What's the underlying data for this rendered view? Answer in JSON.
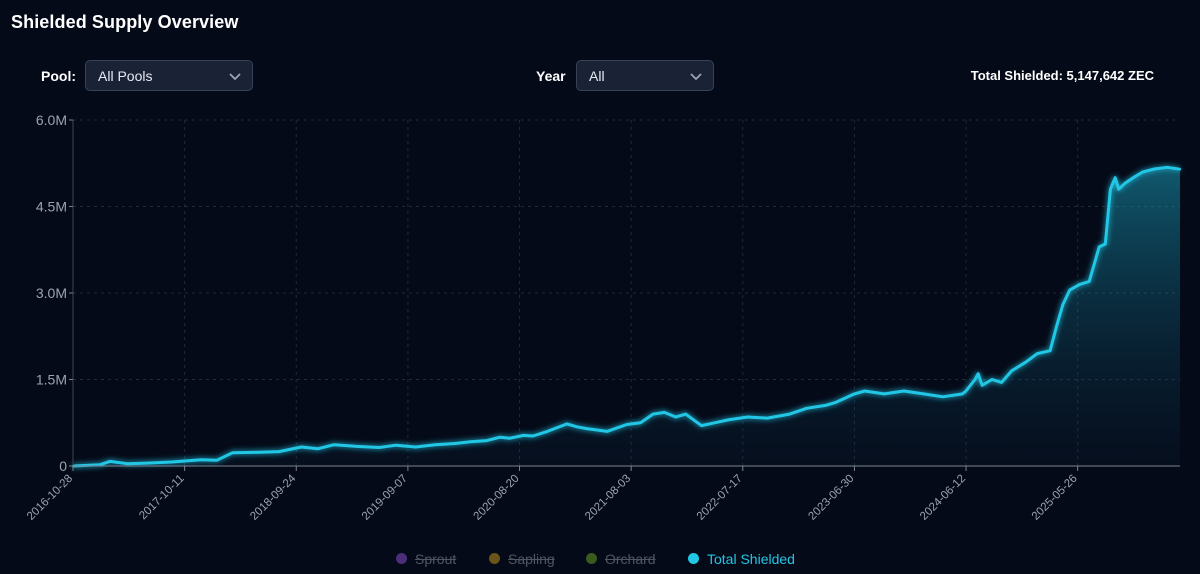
{
  "header": {
    "title": "Shielded Supply Overview"
  },
  "controls": {
    "pool_label": "Pool:",
    "pool_value": "All Pools",
    "year_label": "Year",
    "year_value": "All",
    "total_text": "Total Shielded: 5,147,642 ZEC"
  },
  "chart_data": {
    "type": "area",
    "ylim": [
      0,
      6000000
    ],
    "y_ticks": [
      {
        "value": 0,
        "label": "0"
      },
      {
        "value": 1500000,
        "label": "1.5M"
      },
      {
        "value": 3000000,
        "label": "3.0M"
      },
      {
        "value": 4500000,
        "label": "4.5M"
      },
      {
        "value": 6000000,
        "label": "6.0M"
      }
    ],
    "x_ticks": [
      "2016-10-28",
      "2017-10-11",
      "2018-09-24",
      "2019-09-07",
      "2020-08-20",
      "2021-08-03",
      "2022-07-17",
      "2023-06-30",
      "2024-06-12",
      "2025-05-26"
    ],
    "grid": true,
    "legend_position": "bottom-center",
    "series": [
      {
        "name": "Sprout",
        "color": "#4b2d7a",
        "visible": false
      },
      {
        "name": "Sapling",
        "color": "#6b5419",
        "visible": false
      },
      {
        "name": "Orchard",
        "color": "#3b5a1e",
        "visible": false
      },
      {
        "name": "Total Shielded",
        "color": "#22c7e6",
        "visible": true,
        "points": [
          [
            "2016-10-28",
            0
          ],
          [
            "2017-01-20",
            20000
          ],
          [
            "2017-02-20",
            80000
          ],
          [
            "2017-04-15",
            40000
          ],
          [
            "2017-06-15",
            50000
          ],
          [
            "2017-09-01",
            70000
          ],
          [
            "2017-12-01",
            110000
          ],
          [
            "2018-01-20",
            100000
          ],
          [
            "2018-03-10",
            230000
          ],
          [
            "2018-06-01",
            240000
          ],
          [
            "2018-08-01",
            250000
          ],
          [
            "2018-10-10",
            330000
          ],
          [
            "2018-12-01",
            300000
          ],
          [
            "2019-01-20",
            370000
          ],
          [
            "2019-04-01",
            340000
          ],
          [
            "2019-06-10",
            320000
          ],
          [
            "2019-08-01",
            360000
          ],
          [
            "2019-10-01",
            330000
          ],
          [
            "2019-12-01",
            370000
          ],
          [
            "2020-02-01",
            390000
          ],
          [
            "2020-03-20",
            420000
          ],
          [
            "2020-05-10",
            440000
          ],
          [
            "2020-06-20",
            500000
          ],
          [
            "2020-07-20",
            480000
          ],
          [
            "2020-09-01",
            530000
          ],
          [
            "2020-10-01",
            520000
          ],
          [
            "2020-11-15",
            600000
          ],
          [
            "2021-01-15",
            730000
          ],
          [
            "2021-02-15",
            680000
          ],
          [
            "2021-03-15",
            650000
          ],
          [
            "2021-05-20",
            600000
          ],
          [
            "2021-07-20",
            720000
          ],
          [
            "2021-09-01",
            750000
          ],
          [
            "2021-10-10",
            900000
          ],
          [
            "2021-11-15",
            930000
          ],
          [
            "2021-12-20",
            850000
          ],
          [
            "2022-01-20",
            900000
          ],
          [
            "2022-03-10",
            700000
          ],
          [
            "2022-04-20",
            750000
          ],
          [
            "2022-06-01",
            800000
          ],
          [
            "2022-08-01",
            850000
          ],
          [
            "2022-10-01",
            830000
          ],
          [
            "2022-12-10",
            900000
          ],
          [
            "2023-02-01",
            1000000
          ],
          [
            "2023-04-01",
            1050000
          ],
          [
            "2023-05-01",
            1100000
          ],
          [
            "2023-06-30",
            1250000
          ],
          [
            "2023-08-01",
            1300000
          ],
          [
            "2023-10-01",
            1250000
          ],
          [
            "2023-12-01",
            1300000
          ],
          [
            "2024-02-01",
            1250000
          ],
          [
            "2024-04-01",
            1200000
          ],
          [
            "2024-06-01",
            1250000
          ],
          [
            "2024-06-12",
            1300000
          ],
          [
            "2024-07-10",
            1500000
          ],
          [
            "2024-07-20",
            1600000
          ],
          [
            "2024-08-01",
            1400000
          ],
          [
            "2024-09-01",
            1500000
          ],
          [
            "2024-10-01",
            1450000
          ],
          [
            "2024-11-01",
            1650000
          ],
          [
            "2024-12-15",
            1800000
          ],
          [
            "2025-01-20",
            1950000
          ],
          [
            "2025-03-01",
            2000000
          ],
          [
            "2025-03-20",
            2400000
          ],
          [
            "2025-04-10",
            2800000
          ],
          [
            "2025-05-01",
            3050000
          ],
          [
            "2025-06-01",
            3150000
          ],
          [
            "2025-07-01",
            3200000
          ],
          [
            "2025-08-01",
            3800000
          ],
          [
            "2025-08-20",
            3850000
          ],
          [
            "2025-09-05",
            4800000
          ],
          [
            "2025-09-20",
            5000000
          ],
          [
            "2025-10-01",
            4800000
          ],
          [
            "2025-10-20",
            4900000
          ],
          [
            "2025-11-15",
            5000000
          ],
          [
            "2025-12-15",
            5100000
          ],
          [
            "2026-01-20",
            5150000
          ],
          [
            "2026-03-01",
            5180000
          ],
          [
            "2026-04-10",
            5147642
          ]
        ]
      }
    ]
  }
}
